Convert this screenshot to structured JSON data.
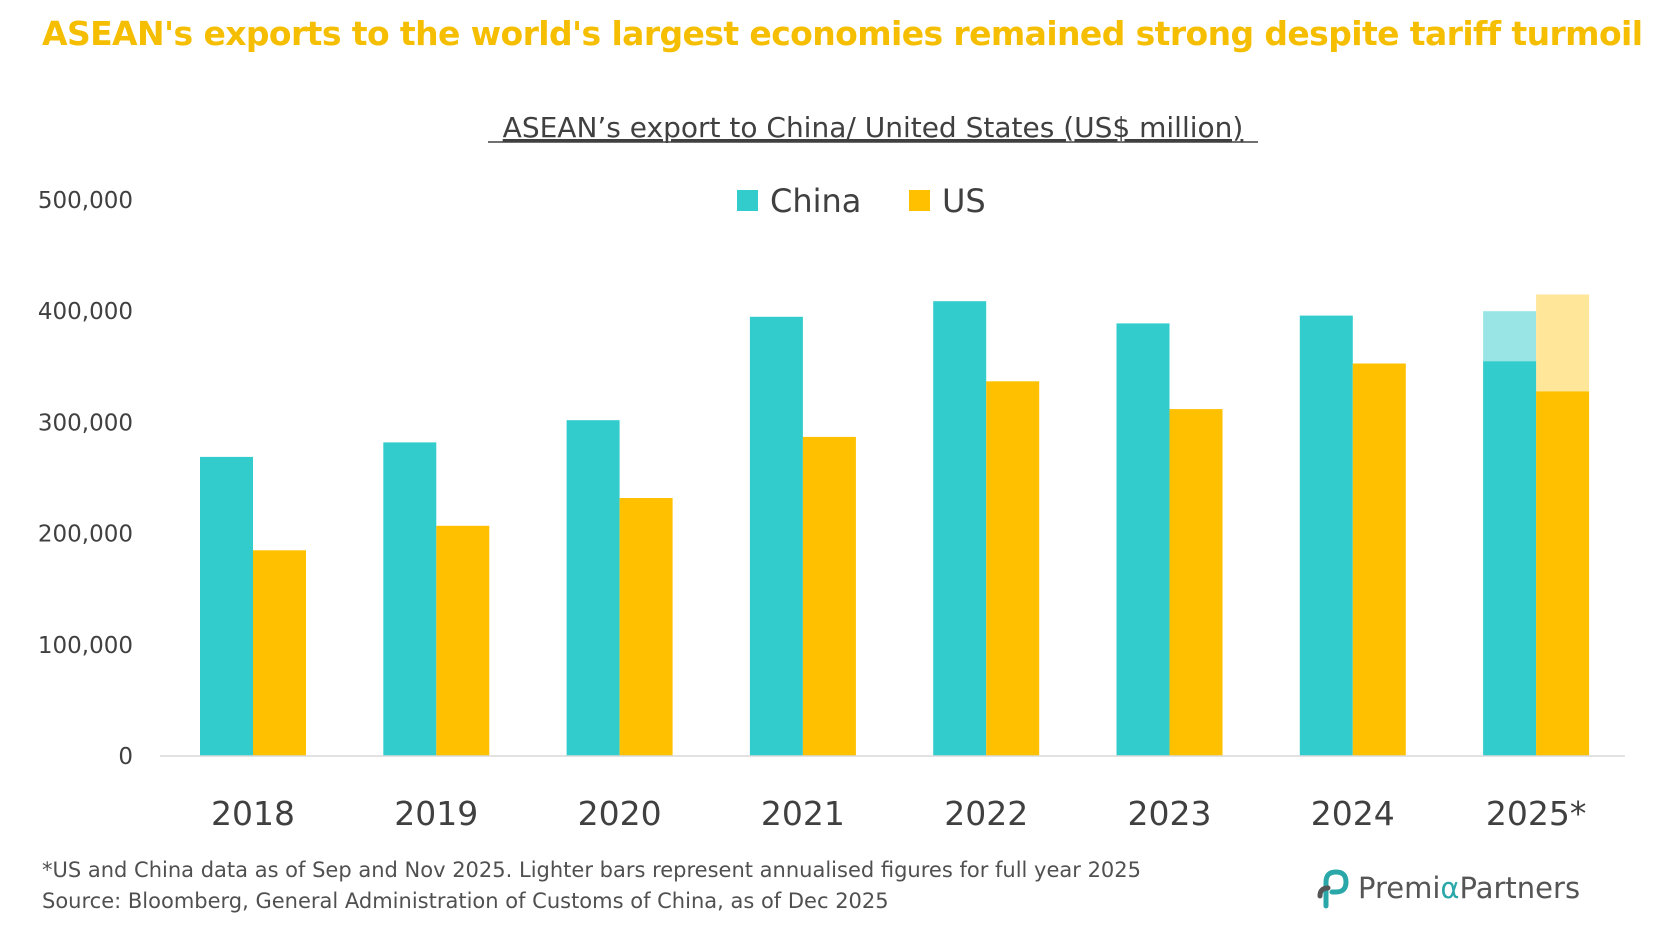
{
  "headline": "ASEAN's exports to the world's largest economies remained strong despite tariff turmoil",
  "chart_data": {
    "type": "bar",
    "title": "ASEAN’s export to China/ United States (US$ million)",
    "xlabel": "",
    "ylabel": "",
    "categories": [
      "2018",
      "2019",
      "2020",
      "2021",
      "2022",
      "2023",
      "2024",
      "2025*"
    ],
    "ylim": [
      0,
      500000
    ],
    "yticks": [
      0,
      100000,
      200000,
      300000,
      400000,
      500000
    ],
    "ytick_labels": [
      "0",
      "100,000",
      "200,000",
      "300,000",
      "400,000",
      "500,000"
    ],
    "legend_position": "top-center",
    "grid": false,
    "series": [
      {
        "name": "China",
        "color": "#33CCCC",
        "light_color": "#99E5E5",
        "values": [
          269000,
          282000,
          302000,
          395000,
          409000,
          389000,
          396000,
          355000
        ],
        "annualised_2025": 400000
      },
      {
        "name": "US",
        "color": "#FFC000",
        "light_color": "#FFE699",
        "values": [
          185000,
          207000,
          232000,
          287000,
          337000,
          312000,
          353000,
          328000
        ],
        "annualised_2025": 415000
      }
    ]
  },
  "footnote": {
    "line1": "*US and China data as of Sep and Nov 2025. Lighter bars represent annualised figures for full year 2025",
    "line2": "Source: Bloomberg, General Administration of Customs of China, as of Dec 2025"
  },
  "logo": {
    "icon": "premia-logo-icon",
    "word1": "Premi",
    "alpha": "α",
    "word2": "Partners"
  }
}
